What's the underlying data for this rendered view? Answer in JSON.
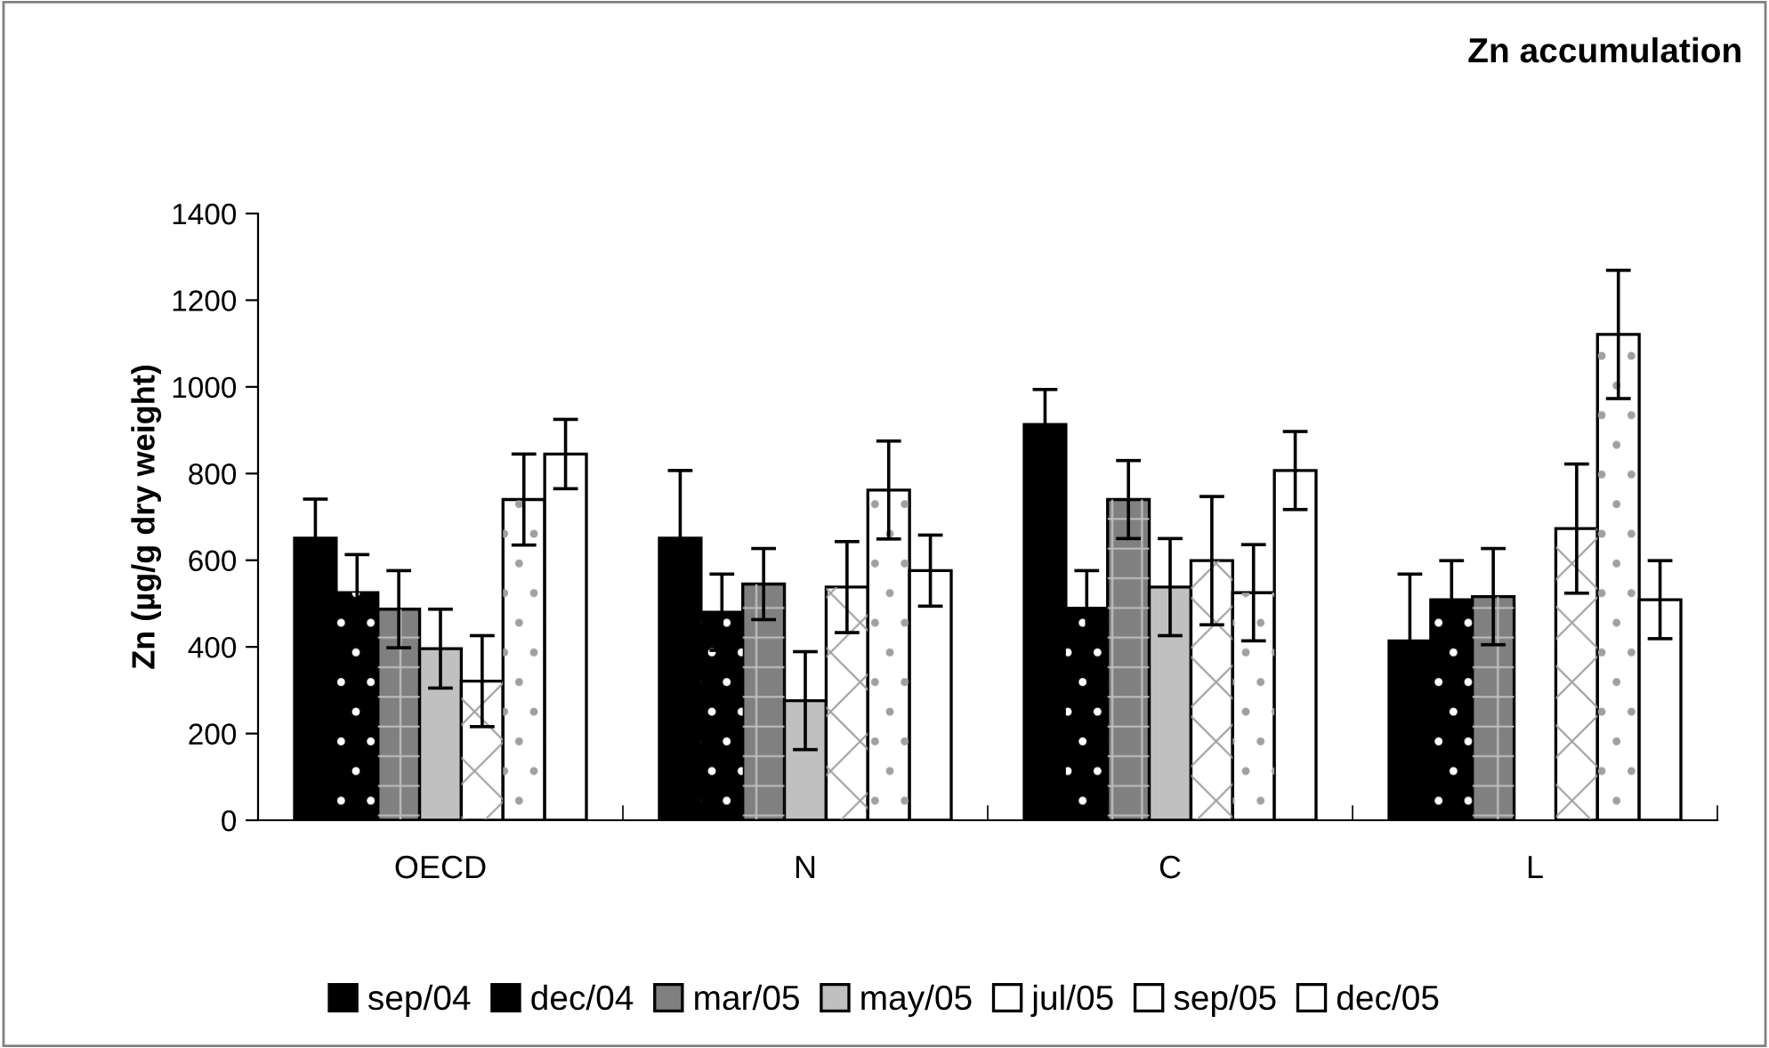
{
  "chart_data": {
    "type": "bar",
    "title": "Zn accumulation",
    "ylabel": "Zn (µg/g dry weight)",
    "categories": [
      "OECD",
      "N",
      "C",
      "L"
    ],
    "ylim": [
      0,
      1400
    ],
    "yticks": [
      0,
      200,
      400,
      600,
      800,
      1000,
      1200,
      1400
    ],
    "grid": false,
    "legend": "bottom",
    "series": [
      {
        "name": "sep/04",
        "color": "#000000",
        "values": [
          651,
          651,
          913,
          414
        ],
        "errors": [
          90,
          156,
          81,
          154
        ]
      },
      {
        "name": "dec/04",
        "color": "#000000",
        "values": [
          525,
          480,
          489,
          509
        ],
        "errors": [
          88,
          88,
          87,
          90
        ]
      },
      {
        "name": "mar/05",
        "color": "#808080",
        "values": [
          487,
          545,
          740,
          516
        ],
        "errors": [
          89,
          82,
          90,
          111
        ]
      },
      {
        "name": "may/05",
        "color": "#c0c0c0",
        "values": [
          396,
          276,
          538,
          null
        ],
        "errors": [
          91,
          113,
          112,
          null
        ]
      },
      {
        "name": "jul/05",
        "color": "#ffffff",
        "values": [
          321,
          538,
          599,
          673
        ],
        "errors": [
          105,
          105,
          148,
          149
        ]
      },
      {
        "name": "sep/05",
        "color": "#ffffff",
        "values": [
          740,
          762,
          525,
          1121
        ],
        "errors": [
          105,
          113,
          111,
          148
        ]
      },
      {
        "name": "dec/05",
        "color": "#ffffff",
        "values": [
          845,
          576,
          807,
          509
        ],
        "errors": [
          80,
          82,
          90,
          90
        ]
      }
    ]
  }
}
